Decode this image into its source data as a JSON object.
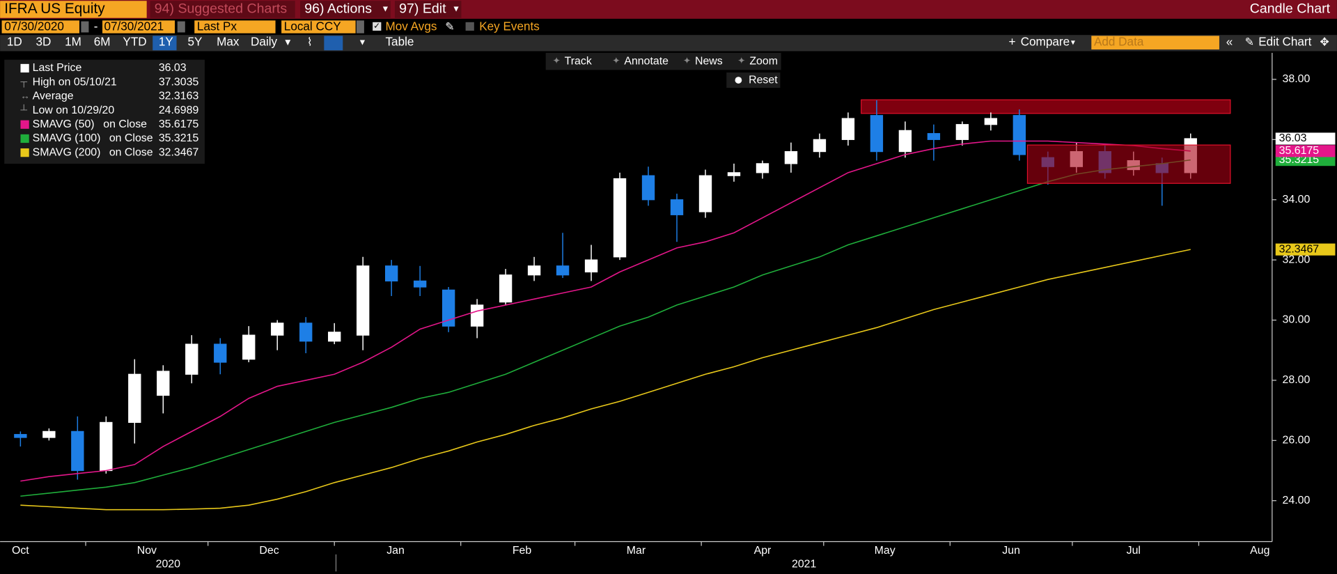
{
  "ui": {
    "ticker": "IFRA US Equity",
    "menus": [
      "94) Suggested Charts",
      "96) Actions",
      "97) Edit"
    ],
    "title": "Candle Chart",
    "start_date": "07/30/2020",
    "end_date": "07/30/2021",
    "field": "Last Px",
    "currency": "Local CCY",
    "mov_avgs": "Mov Avgs",
    "key_events": "Key Events",
    "periods": [
      "1D",
      "3D",
      "1M",
      "6M",
      "YTD",
      "1Y",
      "5Y",
      "Max"
    ],
    "active_period": "1Y",
    "frequency": "Daily",
    "table": "Table",
    "compare": "Compare",
    "add_data": "Add Data",
    "edit_chart": "Edit Chart",
    "tools": [
      "Track",
      "Annotate",
      "News",
      "Zoom"
    ],
    "reset": "Reset"
  },
  "chart_data": {
    "type": "candlestick",
    "x": [
      "2020-10-16",
      "2020-10-23",
      "2020-10-30",
      "2020-11-06",
      "2020-11-13",
      "2020-11-20",
      "2020-11-27",
      "2020-12-04",
      "2020-12-11",
      "2020-12-18",
      "2020-12-25",
      "2021-01-01",
      "2021-01-08",
      "2021-01-15",
      "2021-01-22",
      "2021-01-29",
      "2021-02-05",
      "2021-02-12",
      "2021-02-19",
      "2021-02-26",
      "2021-03-05",
      "2021-03-12",
      "2021-03-19",
      "2021-03-26",
      "2021-04-02",
      "2021-04-09",
      "2021-04-16",
      "2021-04-23",
      "2021-04-30",
      "2021-05-07",
      "2021-05-14",
      "2021-05-21",
      "2021-05-28",
      "2021-06-04",
      "2021-06-11",
      "2021-06-18",
      "2021-06-25",
      "2021-07-02",
      "2021-07-09",
      "2021-07-16",
      "2021-07-23",
      "2021-07-30"
    ],
    "candles": {
      "name": "Last Price",
      "up_color": "#ffffff",
      "down_color": "#1e7fe6",
      "open": [
        26.2,
        26.1,
        26.3,
        25.0,
        26.6,
        27.5,
        28.2,
        29.2,
        28.7,
        29.5,
        29.9,
        29.3,
        29.5,
        31.8,
        31.3,
        31.0,
        29.8,
        30.6,
        31.5,
        31.8,
        31.6,
        32.1,
        34.8,
        34.0,
        33.6,
        34.8,
        34.9,
        35.2,
        35.6,
        36.0,
        36.8,
        35.6,
        36.2,
        36.0,
        36.5,
        36.8,
        35.4,
        35.1,
        35.6,
        35.0,
        35.2,
        34.9
      ],
      "high": [
        26.3,
        26.4,
        26.8,
        26.8,
        28.7,
        28.5,
        29.5,
        29.4,
        29.8,
        30.0,
        30.1,
        29.9,
        32.1,
        32.0,
        31.8,
        31.1,
        30.7,
        31.7,
        32.1,
        32.9,
        32.5,
        34.9,
        35.1,
        34.2,
        35.0,
        35.2,
        35.3,
        35.9,
        36.2,
        36.9,
        37.3035,
        36.6,
        36.5,
        36.6,
        36.9,
        37.0,
        35.6,
        35.9,
        35.8,
        35.6,
        35.4,
        36.2
      ],
      "low": [
        25.8,
        26.0,
        24.6989,
        24.9,
        25.9,
        26.9,
        27.9,
        28.2,
        28.6,
        29.0,
        28.9,
        29.2,
        29.0,
        30.8,
        30.8,
        29.6,
        29.4,
        30.5,
        31.3,
        31.4,
        31.3,
        32.0,
        33.8,
        32.6,
        33.4,
        34.6,
        34.7,
        34.9,
        35.4,
        35.8,
        35.3,
        35.4,
        35.3,
        35.8,
        36.3,
        35.3,
        34.5,
        34.9,
        34.7,
        34.8,
        33.8,
        34.7
      ],
      "close": [
        26.1,
        26.3,
        25.0,
        26.6,
        28.2,
        28.3,
        29.2,
        28.6,
        29.5,
        29.9,
        29.3,
        29.6,
        31.8,
        31.3,
        31.1,
        29.8,
        30.5,
        31.5,
        31.8,
        31.5,
        32.0,
        34.7,
        34.0,
        33.5,
        34.8,
        34.9,
        35.2,
        35.6,
        36.0,
        36.7,
        35.6,
        36.3,
        36.0,
        36.5,
        36.7,
        35.5,
        35.1,
        35.6,
        34.9,
        35.3,
        34.9,
        36.03
      ]
    },
    "series": [
      {
        "name": "SMAVG (50)",
        "basis": "on Close",
        "color": "#e4168a",
        "values": [
          24.65,
          24.8,
          24.9,
          25.0,
          25.2,
          25.8,
          26.3,
          26.8,
          27.4,
          27.8,
          28.0,
          28.2,
          28.6,
          29.1,
          29.7,
          30.0,
          30.3,
          30.5,
          30.7,
          30.9,
          31.1,
          31.6,
          32.0,
          32.4,
          32.6,
          32.9,
          33.4,
          33.9,
          34.4,
          34.9,
          35.2,
          35.5,
          35.7,
          35.85,
          35.95,
          35.95,
          35.95,
          35.9,
          35.85,
          35.8,
          35.7,
          35.6175
        ]
      },
      {
        "name": "SMAVG (100)",
        "basis": "on Close",
        "color": "#1fae3b",
        "values": [
          24.15,
          24.25,
          24.35,
          24.45,
          24.6,
          24.85,
          25.1,
          25.4,
          25.7,
          26.0,
          26.3,
          26.6,
          26.85,
          27.1,
          27.4,
          27.6,
          27.9,
          28.2,
          28.6,
          29.0,
          29.4,
          29.8,
          30.1,
          30.5,
          30.8,
          31.1,
          31.5,
          31.8,
          32.1,
          32.5,
          32.8,
          33.1,
          33.4,
          33.7,
          34.0,
          34.3,
          34.6,
          34.85,
          35.0,
          35.1,
          35.2,
          35.3215
        ]
      },
      {
        "name": "SMAVG (200)",
        "basis": "on Close",
        "color": "#e8c81a",
        "values": [
          23.85,
          23.8,
          23.75,
          23.7,
          23.7,
          23.7,
          23.72,
          23.75,
          23.85,
          24.05,
          24.3,
          24.6,
          24.85,
          25.1,
          25.4,
          25.65,
          25.95,
          26.2,
          26.5,
          26.75,
          27.05,
          27.3,
          27.6,
          27.9,
          28.2,
          28.45,
          28.75,
          29.0,
          29.25,
          29.5,
          29.75,
          30.05,
          30.35,
          30.6,
          30.85,
          31.1,
          31.35,
          31.55,
          31.75,
          31.95,
          32.15,
          32.3467
        ]
      }
    ],
    "stats": [
      {
        "label": "High on 05/10/21",
        "value": 37.3035
      },
      {
        "label": "Average",
        "value": 32.3163
      },
      {
        "label": "Low on 10/29/20",
        "value": 24.6989
      }
    ],
    "xlim": [
      "2020-10-11",
      "2021-08-19"
    ],
    "xticks": [
      {
        "value": "2020-10",
        "label": "Oct"
      },
      {
        "value": "2020-11",
        "label": "Nov"
      },
      {
        "value": "2020-12",
        "label": "Dec"
      },
      {
        "value": "2021-01",
        "label": "Jan"
      },
      {
        "value": "2021-02",
        "label": "Feb"
      },
      {
        "value": "2021-03",
        "label": "Mar"
      },
      {
        "value": "2021-04",
        "label": "Apr"
      },
      {
        "value": "2021-05",
        "label": "May"
      },
      {
        "value": "2021-06",
        "label": "Jun"
      },
      {
        "value": "2021-07",
        "label": "Jul"
      },
      {
        "value": "2021-08",
        "label": "Aug"
      }
    ],
    "years": [
      "2020",
      "2021"
    ],
    "ylim": [
      22.64,
      38.88
    ],
    "yticks": [
      {
        "value": 24,
        "label": "24.00"
      },
      {
        "value": 26,
        "label": "26.00"
      },
      {
        "value": 28,
        "label": "28.00"
      },
      {
        "value": 30,
        "label": "30.00"
      },
      {
        "value": 32,
        "label": "32.00"
      },
      {
        "value": 34,
        "label": "34.00"
      },
      {
        "value": 36,
        "label": "36.00"
      },
      {
        "value": 38,
        "label": "38.00"
      }
    ],
    "grid": false
  }
}
